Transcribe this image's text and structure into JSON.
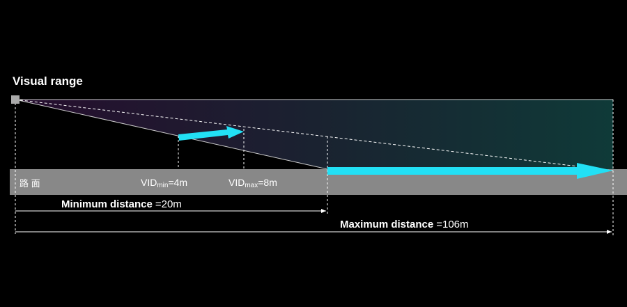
{
  "title": "Visual range",
  "road_label": "路 面",
  "markers": [
    {
      "label": "VID",
      "subscript": "min",
      "value": "=4m"
    },
    {
      "label": "VID",
      "subscript": "max",
      "value": "=8m"
    }
  ],
  "distances": [
    {
      "label": "Minimum distance",
      "value": "=20m"
    },
    {
      "label": "Maximum distance",
      "value": "=106m"
    }
  ]
}
